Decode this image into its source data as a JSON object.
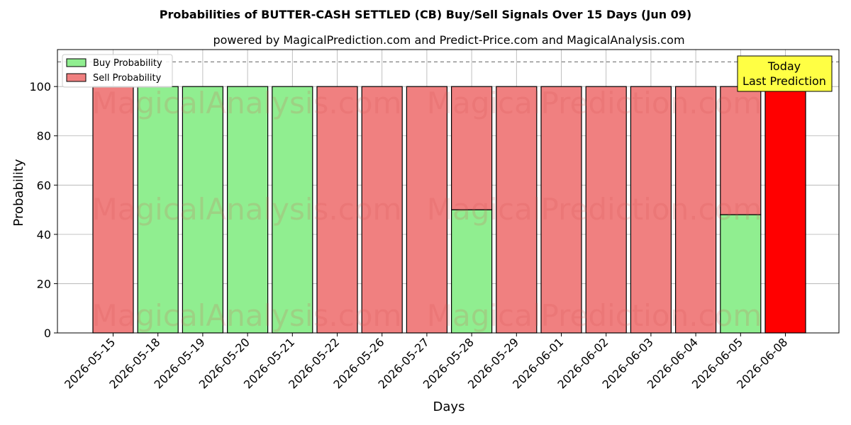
{
  "chart_data": {
    "type": "bar",
    "stacked": true,
    "title": "Probabilities of BUTTER-CASH SETTLED (CB) Buy/Sell Signals Over 15 Days (Jun 09)",
    "subtitle": "powered by MagicalPrediction.com and Predict-Price.com and MagicalAnalysis.com",
    "xlabel": "Days",
    "ylabel": "Probability",
    "ylim": [
      0,
      115
    ],
    "yticks": [
      0,
      20,
      40,
      60,
      80,
      100
    ],
    "grid": true,
    "legend_position": "top-left",
    "reference_line": 110,
    "categories": [
      "2026-05-15",
      "2026-05-18",
      "2026-05-19",
      "2026-05-20",
      "2026-05-21",
      "2026-05-22",
      "2026-05-26",
      "2026-05-27",
      "2026-05-28",
      "2026-05-29",
      "2026-06-01",
      "2026-06-02",
      "2026-06-03",
      "2026-06-04",
      "2026-06-05",
      "2026-06-08"
    ],
    "series": [
      {
        "name": "Buy Probability",
        "color": "#90ee90",
        "values": [
          0,
          100,
          100,
          100,
          100,
          0,
          0,
          0,
          50,
          0,
          0,
          0,
          0,
          0,
          48,
          0
        ]
      },
      {
        "name": "Sell Probability",
        "color": "#f08080",
        "values": [
          100,
          0,
          0,
          0,
          0,
          100,
          100,
          100,
          50,
          100,
          100,
          100,
          100,
          100,
          52,
          100
        ]
      }
    ],
    "highlight": {
      "index": 15,
      "color": "#ff0000"
    },
    "annotation": {
      "line1": "Today",
      "line2": "Last Prediction",
      "color": "#ffff44"
    },
    "watermarks": [
      "MagicalAnalysis.com",
      "MagicalPrediction.com"
    ]
  }
}
